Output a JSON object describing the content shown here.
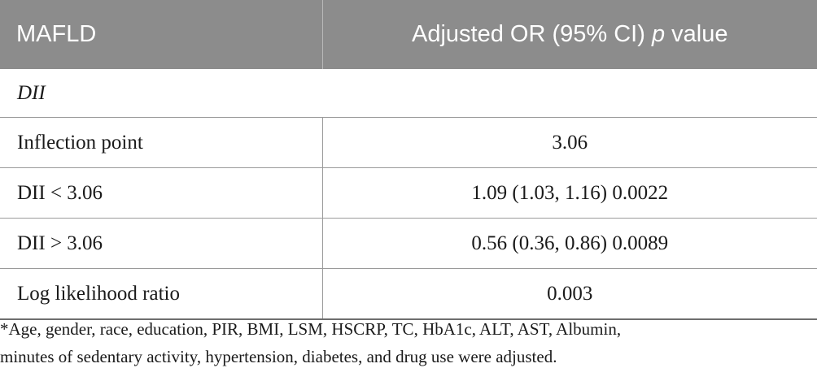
{
  "table": {
    "headers": {
      "col1": "MAFLD",
      "col2_prefix": "Adjusted OR (95% CI) ",
      "col2_italic": "p",
      "col2_suffix": " value"
    },
    "section_label": "DII",
    "rows": [
      {
        "label": "Inflection point",
        "value": "3.06"
      },
      {
        "label": "DII < 3.06",
        "value": "1.09 (1.03, 1.16) 0.0022"
      },
      {
        "label": "DII > 3.06",
        "value": "0.56 (0.36, 0.86) 0.0089"
      },
      {
        "label": "Log likelihood ratio",
        "value": "0.003"
      }
    ]
  },
  "footnote": {
    "line1": "*Age, gender, race, education, PIR, BMI, LSM, HSCRP, TC, HbA1c, ALT, AST, Albumin,",
    "line2": "minutes of sedentary activity, hypertension, diabetes, and drug use were adjusted."
  }
}
